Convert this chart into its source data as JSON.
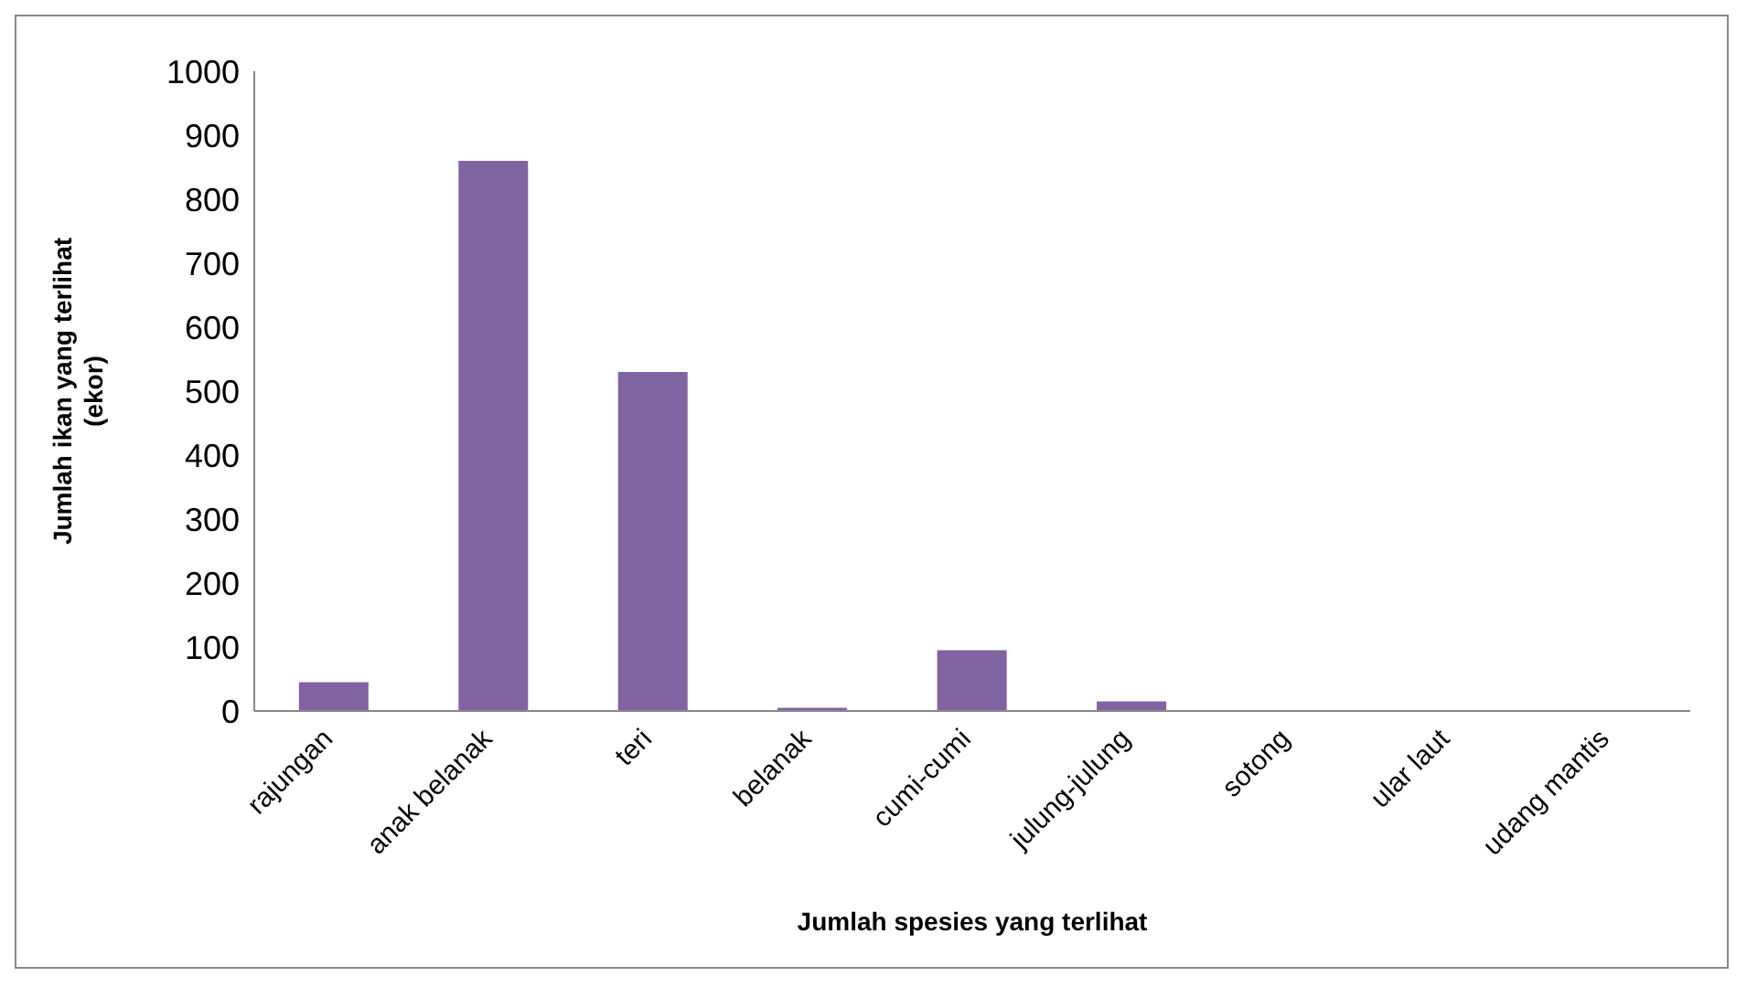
{
  "chart_data": {
    "type": "bar",
    "xlabel": "Jumlah spesies  yang terlihat",
    "ylabel": "Jumlah ikan yang terlihat\n(ekor)",
    "categories": [
      "rajungan",
      "anak belanak",
      "teri",
      "belanak",
      "cumi-cumi",
      "julung-julung",
      "sotong",
      "ular laut",
      "udang mantis"
    ],
    "values": [
      45,
      860,
      530,
      5,
      95,
      15,
      0,
      0,
      0
    ],
    "color": "#8064a2",
    "ylim": [
      0,
      1000
    ],
    "yticks": [
      0,
      100,
      200,
      300,
      400,
      500,
      600,
      700,
      800,
      900,
      1000
    ],
    "grid": false,
    "legend": false
  }
}
